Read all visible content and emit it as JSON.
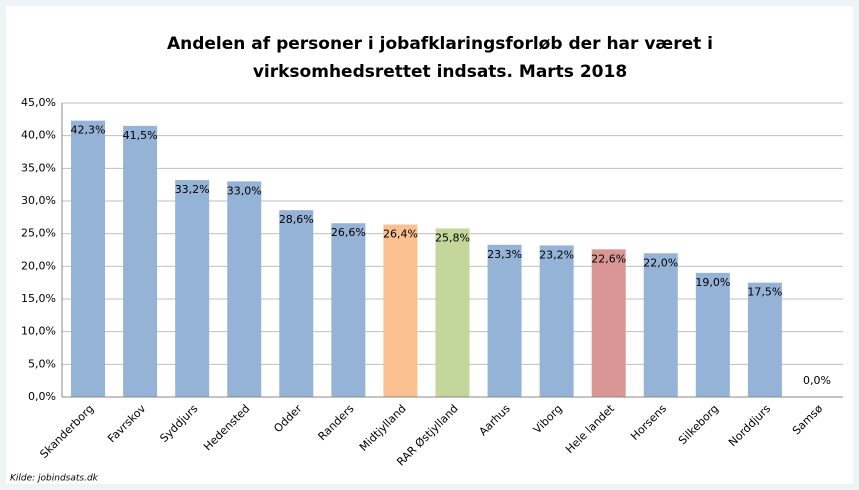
{
  "chart_data": {
    "type": "bar",
    "title": [
      "Andelen af personer i jobafklaringsforløb der har været i",
      "virksomhedsrettet indsats. Marts 2018"
    ],
    "categories": [
      "Skanderborg",
      "Favrskov",
      "Syddjurs",
      "Hedensted",
      "Odder",
      "Randers",
      "Midtjylland",
      "RAR Østjylland",
      "Aarhus",
      "Viborg",
      "Hele landet",
      "Horsens",
      "Silkeborg",
      "Norddjurs",
      "Samsø"
    ],
    "values": [
      42.3,
      41.5,
      33.2,
      33.0,
      28.6,
      26.6,
      26.4,
      25.8,
      23.3,
      23.2,
      22.6,
      22.0,
      19.0,
      17.5,
      0.0
    ],
    "value_labels": [
      "42,3%",
      "41,5%",
      "33,2%",
      "33,0%",
      "28,6%",
      "26,6%",
      "26,4%",
      "25,8%",
      "23,3%",
      "23,2%",
      "22,6%",
      "22,0%",
      "19,0%",
      "17,5%",
      "0,0%"
    ],
    "colors": [
      "#95b3d7",
      "#95b3d7",
      "#95b3d7",
      "#95b3d7",
      "#95b3d7",
      "#95b3d7",
      "#fac090",
      "#c3d69b",
      "#95b3d7",
      "#95b3d7",
      "#d99694",
      "#95b3d7",
      "#95b3d7",
      "#95b3d7",
      "#95b3d7"
    ],
    "ylim": [
      0,
      45
    ],
    "yticks": [
      {
        "value": 0,
        "label": "0,0%"
      },
      {
        "value": 5,
        "label": "5,0%"
      },
      {
        "value": 10,
        "label": "10,0%"
      },
      {
        "value": 15,
        "label": "15,0%"
      },
      {
        "value": 20,
        "label": "20,0%"
      },
      {
        "value": 25,
        "label": "25,0%"
      },
      {
        "value": 30,
        "label": "30,0%"
      },
      {
        "value": 35,
        "label": "35,0%"
      },
      {
        "value": 40,
        "label": "40,0%"
      },
      {
        "value": 45,
        "label": "45,0%"
      }
    ],
    "grid": true,
    "source": "Kilde: jobindsats.dk"
  }
}
